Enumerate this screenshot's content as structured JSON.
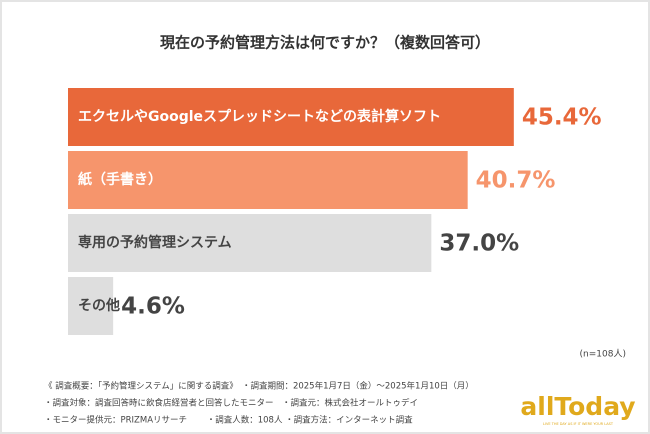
{
  "chart_data": {
    "type": "hbar",
    "title": "現在の予約管理方法は何ですか？（複数回答可）",
    "categories": [
      "エクセルやGoogleスプレッドシートなどの表計算ソフト",
      "紙（手書き）",
      "専用の予約管理システム",
      "その他"
    ],
    "values": [
      45.4,
      40.7,
      37.0,
      4.6
    ],
    "value_labels": [
      "45.4%",
      "40.7%",
      "37.0%",
      "4.6%"
    ],
    "colors": [
      "#e8683a",
      "#f6956c",
      "#dedede",
      "#dedede"
    ],
    "category_label_colors": [
      "#ffffff",
      "#ffffff",
      "#444444",
      "#444444"
    ],
    "value_label_colors": [
      "#e8683a",
      "#f6956c",
      "#444444",
      "#444444"
    ],
    "sample_note": "(n=108人)",
    "notes": [
      "《 調査概要：「予約管理システム」に関する調査》　・調査期間：2025年1月7日（金）～2025年1月10日（月）",
      "・調査対象：調査回答時に飲食店経営者と回答したモニター　・調査元：株式会社オールトゥデイ",
      "・モニター提供元：PRIZMAリサーチ　　 ・調査人数：108人 ・調査方法：インターネット調査"
    ],
    "logo": "allToday",
    "logo_tagline": "LIVE THE DAY AS IF IT WERE YOUR LAST"
  }
}
